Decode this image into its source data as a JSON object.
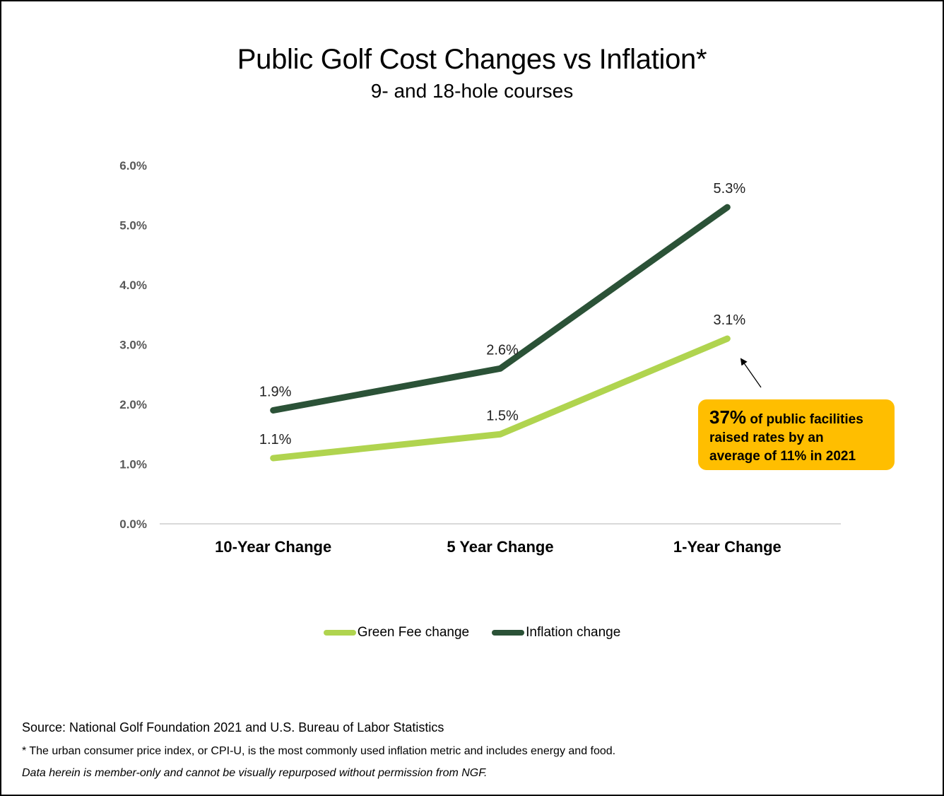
{
  "colors": {
    "green_fee": "#b0d44f",
    "inflation": "#2b5237",
    "callout_bg": "#ffbe00",
    "axis_line": "#d9d9d9",
    "tick_text": "#595959"
  },
  "chart_data": {
    "type": "line",
    "title": "Public Golf Cost Changes vs Inflation*",
    "subtitle": "9- and 18-hole courses",
    "categories": [
      "10-Year Change",
      "5 Year Change",
      "1-Year Change"
    ],
    "series": [
      {
        "name": "Green Fee change",
        "values": [
          1.1,
          1.5,
          3.1
        ],
        "labels": [
          "1.1%",
          "1.5%",
          "3.1%"
        ],
        "color": "#b0d44f"
      },
      {
        "name": "Inflation change",
        "values": [
          1.9,
          2.6,
          5.3
        ],
        "labels": [
          "1.9%",
          "2.6%",
          "5.3%"
        ],
        "color": "#2b5237"
      }
    ],
    "ylim": [
      0,
      6
    ],
    "yticks": [
      "0.0%",
      "1.0%",
      "2.0%",
      "3.0%",
      "4.0%",
      "5.0%",
      "6.0%"
    ],
    "ytick_values": [
      0,
      1,
      2,
      3,
      4,
      5,
      6
    ],
    "xlabel": "",
    "ylabel": "",
    "grid": false,
    "legend_position": "bottom",
    "annotation": {
      "highlight": "37%",
      "text": "of public facilities raised rates by an average of 11% in 2021",
      "line1_rest": "of public facilities",
      "line2": "raised rates by an",
      "line3": "average of 11% in 2021",
      "points_to": {
        "series": "Green Fee change",
        "category": "1-Year Change"
      }
    }
  },
  "footer": {
    "source": "Source: National Golf Foundation 2021 and U.S. Bureau of Labor Statistics",
    "note": "* The urban consumer price index, or CPI-U, is the most commonly used inflation metric and includes energy and food.",
    "disclaimer": "Data herein is member-only and cannot be visually repurposed without permission from NGF."
  }
}
